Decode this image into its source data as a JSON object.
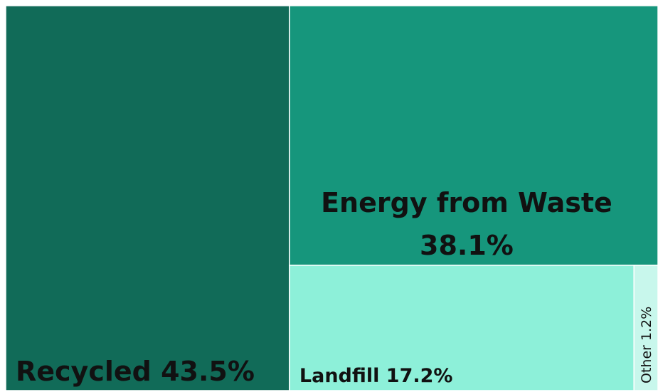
{
  "chart_data": {
    "type": "treemap",
    "categories": [
      "Recycled",
      "Energy from Waste",
      "Landfill",
      "Other"
    ],
    "values": [
      43.5,
      38.1,
      17.2,
      1.2
    ],
    "value_labels": [
      "43.5%",
      "38.1%",
      "17.2%",
      "1.2%"
    ],
    "colors": [
      "#116b58",
      "#16967c",
      "#8df0d9",
      "#c8f7ec"
    ]
  }
}
